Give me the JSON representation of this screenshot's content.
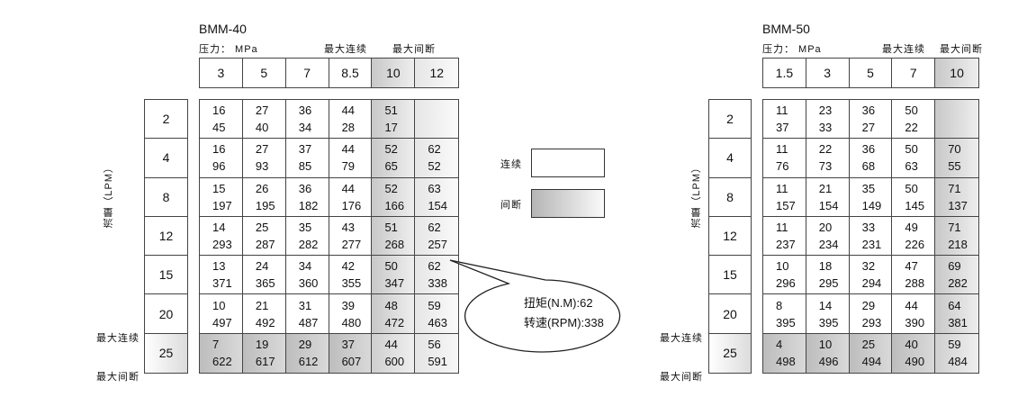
{
  "tables": [
    {
      "model": "BMM-40",
      "pressure_label": "压力： MPa",
      "max_continuous": "最大连续",
      "max_intermittent": "最大间断",
      "flow_label": "流量（LPM）",
      "pressures": [
        "3",
        "5",
        "7",
        "8.5",
        "10",
        "12"
      ],
      "flows": [
        "2",
        "4",
        "8",
        "12",
        "15",
        "20",
        "25"
      ],
      "row_labels": {
        "20": "最大连续",
        "25": "最大间断"
      },
      "cells": [
        [
          [
            "16",
            "45"
          ],
          [
            "27",
            "40"
          ],
          [
            "36",
            "34"
          ],
          [
            "44",
            "28"
          ],
          [
            "51",
            "17"
          ],
          [
            "",
            ""
          ]
        ],
        [
          [
            "16",
            "96"
          ],
          [
            "27",
            "93"
          ],
          [
            "37",
            "85"
          ],
          [
            "44",
            "79"
          ],
          [
            "52",
            "65"
          ],
          [
            "62",
            "52"
          ]
        ],
        [
          [
            "15",
            "197"
          ],
          [
            "26",
            "195"
          ],
          [
            "36",
            "182"
          ],
          [
            "44",
            "176"
          ],
          [
            "52",
            "166"
          ],
          [
            "63",
            "154"
          ]
        ],
        [
          [
            "14",
            "293"
          ],
          [
            "25",
            "287"
          ],
          [
            "35",
            "282"
          ],
          [
            "43",
            "277"
          ],
          [
            "51",
            "268"
          ],
          [
            "62",
            "257"
          ]
        ],
        [
          [
            "13",
            "371"
          ],
          [
            "24",
            "365"
          ],
          [
            "34",
            "360"
          ],
          [
            "42",
            "355"
          ],
          [
            "50",
            "347"
          ],
          [
            "62",
            "338"
          ]
        ],
        [
          [
            "10",
            "497"
          ],
          [
            "21",
            "492"
          ],
          [
            "31",
            "487"
          ],
          [
            "39",
            "480"
          ],
          [
            "48",
            "472"
          ],
          [
            "59",
            "463"
          ]
        ],
        [
          [
            "7",
            "622"
          ],
          [
            "19",
            "617"
          ],
          [
            "29",
            "612"
          ],
          [
            "37",
            "607"
          ],
          [
            "44",
            "600"
          ],
          [
            "56",
            "591"
          ]
        ]
      ]
    },
    {
      "model": "BMM-50",
      "pressure_label": "压力： MPa",
      "max_continuous": "最大连续",
      "max_intermittent": "最大间断",
      "flow_label": "流量（LPM）",
      "pressures": [
        "1.5",
        "3",
        "5",
        "7",
        "10"
      ],
      "flows": [
        "2",
        "4",
        "8",
        "12",
        "15",
        "20",
        "25"
      ],
      "row_labels": {
        "20": "最大连续",
        "25": "最大间断"
      },
      "cells": [
        [
          [
            "11",
            "37"
          ],
          [
            "23",
            "33"
          ],
          [
            "36",
            "27"
          ],
          [
            "50",
            "22"
          ],
          [
            "",
            ""
          ]
        ],
        [
          [
            "11",
            "76"
          ],
          [
            "22",
            "73"
          ],
          [
            "36",
            "68"
          ],
          [
            "50",
            "63"
          ],
          [
            "70",
            "55"
          ]
        ],
        [
          [
            "11",
            "157"
          ],
          [
            "21",
            "154"
          ],
          [
            "35",
            "149"
          ],
          [
            "50",
            "145"
          ],
          [
            "71",
            "137"
          ]
        ],
        [
          [
            "11",
            "237"
          ],
          [
            "20",
            "234"
          ],
          [
            "33",
            "231"
          ],
          [
            "49",
            "226"
          ],
          [
            "71",
            "218"
          ]
        ],
        [
          [
            "10",
            "296"
          ],
          [
            "18",
            "295"
          ],
          [
            "32",
            "294"
          ],
          [
            "47",
            "288"
          ],
          [
            "69",
            "282"
          ]
        ],
        [
          [
            "8",
            "395"
          ],
          [
            "14",
            "395"
          ],
          [
            "29",
            "293"
          ],
          [
            "44",
            "390"
          ],
          [
            "64",
            "381"
          ]
        ],
        [
          [
            "4",
            "498"
          ],
          [
            "10",
            "496"
          ],
          [
            "25",
            "494"
          ],
          [
            "40",
            "490"
          ],
          [
            "59",
            "484"
          ]
        ]
      ]
    }
  ],
  "legend": {
    "continuous": "连续",
    "intermittent": "间断"
  },
  "callout": {
    "torque": "扭矩(N.M):62",
    "speed": "转速(RPM):338"
  }
}
